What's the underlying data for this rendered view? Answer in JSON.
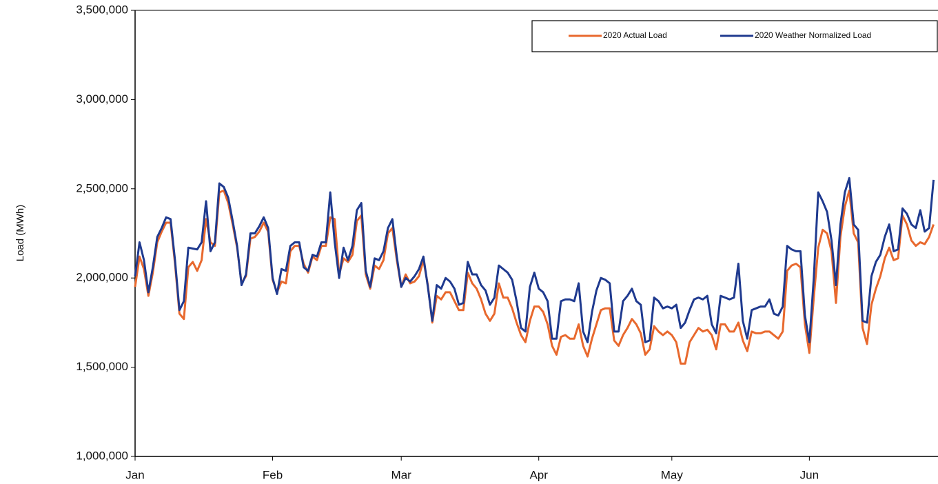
{
  "chart_data": {
    "type": "line",
    "y_label": "Load (MWh)",
    "x": [
      0,
      1,
      2,
      3,
      4,
      5,
      6,
      7,
      8,
      9,
      10,
      11,
      12,
      13,
      14,
      15,
      16,
      17,
      18,
      19,
      20,
      21,
      22,
      23,
      24,
      25,
      26,
      27,
      28,
      29,
      30,
      31,
      32,
      33,
      34,
      35,
      36,
      37,
      38,
      39,
      40,
      41,
      42,
      43,
      44,
      45,
      46,
      47,
      48,
      49,
      50,
      51,
      52,
      53,
      54,
      55,
      56,
      57,
      58,
      59,
      60,
      61,
      62,
      63,
      64,
      65,
      66,
      67,
      68,
      69,
      70,
      71,
      72,
      73,
      74,
      75,
      76,
      77,
      78,
      79,
      80,
      81,
      82,
      83,
      84,
      85,
      86,
      87,
      88,
      89,
      90,
      91,
      92,
      93,
      94,
      95,
      96,
      97,
      98,
      99,
      100,
      101,
      102,
      103,
      104,
      105,
      106,
      107,
      108,
      109,
      110,
      111,
      112,
      113,
      114,
      115,
      116,
      117,
      118,
      119,
      120,
      121,
      122,
      123,
      124,
      125,
      126,
      127,
      128,
      129,
      130,
      131,
      132,
      133,
      134,
      135,
      136,
      137,
      138,
      139,
      140,
      141,
      142,
      143,
      144,
      145,
      146,
      147,
      148,
      149,
      150,
      151,
      152,
      153,
      154,
      155,
      156,
      157,
      158,
      159,
      160,
      161,
      162,
      163,
      164,
      165,
      166,
      167,
      168,
      169,
      170,
      171,
      172,
      173,
      174,
      175,
      176,
      177,
      178,
      179,
      180
    ],
    "xlim": [
      0,
      181
    ],
    "xticks": [
      {
        "value": 0,
        "label": "Jan"
      },
      {
        "value": 31,
        "label": "Feb"
      },
      {
        "value": 60,
        "label": "Mar"
      },
      {
        "value": 91,
        "label": "Apr"
      },
      {
        "value": 121,
        "label": "May"
      },
      {
        "value": 152,
        "label": "Jun"
      }
    ],
    "ylim": [
      1000000,
      3500000
    ],
    "yticks": [
      {
        "value": 1000000,
        "label": "1,000,000"
      },
      {
        "value": 1500000,
        "label": "1,500,000"
      },
      {
        "value": 2000000,
        "label": "2,000,000"
      },
      {
        "value": 2500000,
        "label": "2,500,000"
      },
      {
        "value": 3000000,
        "label": "3,000,000"
      },
      {
        "value": 3500000,
        "label": "3,500,000"
      }
    ],
    "legend": "top-right",
    "series": [
      {
        "name": "2020 Actual Load",
        "color": "#e8692e",
        "values": [
          1950000,
          2120000,
          2050000,
          1900000,
          2030000,
          2200000,
          2260000,
          2310000,
          2310000,
          2080000,
          1800000,
          1770000,
          2060000,
          2090000,
          2040000,
          2100000,
          2330000,
          2200000,
          2180000,
          2480000,
          2490000,
          2420000,
          2300000,
          2170000,
          1970000,
          2010000,
          2220000,
          2230000,
          2260000,
          2310000,
          2260000,
          1990000,
          1920000,
          1980000,
          1970000,
          2150000,
          2180000,
          2180000,
          2080000,
          2030000,
          2120000,
          2100000,
          2180000,
          2180000,
          2340000,
          2330000,
          2020000,
          2110000,
          2090000,
          2130000,
          2320000,
          2350000,
          2020000,
          1940000,
          2070000,
          2050000,
          2100000,
          2250000,
          2280000,
          2100000,
          1950000,
          2020000,
          1970000,
          1980000,
          2010000,
          2100000,
          1960000,
          1750000,
          1900000,
          1880000,
          1920000,
          1920000,
          1870000,
          1820000,
          1820000,
          2030000,
          1970000,
          1940000,
          1880000,
          1800000,
          1760000,
          1800000,
          1970000,
          1890000,
          1890000,
          1830000,
          1750000,
          1680000,
          1640000,
          1760000,
          1840000,
          1840000,
          1810000,
          1740000,
          1620000,
          1570000,
          1670000,
          1680000,
          1660000,
          1660000,
          1740000,
          1620000,
          1560000,
          1660000,
          1740000,
          1820000,
          1830000,
          1830000,
          1650000,
          1620000,
          1680000,
          1720000,
          1770000,
          1740000,
          1690000,
          1570000,
          1600000,
          1730000,
          1700000,
          1680000,
          1700000,
          1680000,
          1640000,
          1520000,
          1520000,
          1640000,
          1680000,
          1720000,
          1700000,
          1710000,
          1680000,
          1600000,
          1740000,
          1740000,
          1700000,
          1700000,
          1750000,
          1650000,
          1590000,
          1700000,
          1690000,
          1690000,
          1700000,
          1700000,
          1680000,
          1660000,
          1700000,
          2040000,
          2070000,
          2080000,
          2060000,
          1740000,
          1580000,
          1890000,
          2170000,
          2270000,
          2250000,
          2150000,
          1860000,
          2230000,
          2400000,
          2490000,
          2250000,
          2200000,
          1720000,
          1630000,
          1850000,
          1940000,
          2010000,
          2110000,
          2170000,
          2100000,
          2110000,
          2350000,
          2300000,
          2210000,
          2180000,
          2200000,
          2190000,
          2230000,
          2300000
        ]
      },
      {
        "name": "2020 Weather Normalized Load",
        "color": "#1f3a8f",
        "values": [
          2010000,
          2200000,
          2100000,
          1920000,
          2060000,
          2230000,
          2280000,
          2340000,
          2330000,
          2100000,
          1820000,
          1870000,
          2170000,
          2165000,
          2160000,
          2200000,
          2430000,
          2150000,
          2200000,
          2530000,
          2510000,
          2450000,
          2320000,
          2180000,
          1960000,
          2020000,
          2250000,
          2250000,
          2290000,
          2340000,
          2280000,
          2000000,
          1910000,
          2050000,
          2040000,
          2180000,
          2200000,
          2200000,
          2060000,
          2040000,
          2130000,
          2120000,
          2200000,
          2200000,
          2480000,
          2200000,
          2000000,
          2170000,
          2100000,
          2180000,
          2380000,
          2420000,
          2040000,
          1950000,
          2110000,
          2100000,
          2150000,
          2280000,
          2330000,
          2120000,
          1950000,
          2000000,
          1980000,
          2010000,
          2050000,
          2120000,
          1950000,
          1760000,
          1960000,
          1940000,
          2000000,
          1980000,
          1940000,
          1850000,
          1860000,
          2090000,
          2020000,
          2020000,
          1960000,
          1930000,
          1850000,
          1890000,
          2070000,
          2050000,
          2030000,
          1990000,
          1870000,
          1720000,
          1700000,
          1950000,
          2030000,
          1940000,
          1920000,
          1870000,
          1660000,
          1660000,
          1870000,
          1880000,
          1880000,
          1870000,
          1970000,
          1700000,
          1640000,
          1810000,
          1930000,
          2000000,
          1990000,
          1970000,
          1700000,
          1700000,
          1870000,
          1900000,
          1940000,
          1870000,
          1850000,
          1640000,
          1650000,
          1890000,
          1870000,
          1830000,
          1840000,
          1830000,
          1850000,
          1720000,
          1750000,
          1820000,
          1880000,
          1890000,
          1880000,
          1900000,
          1740000,
          1690000,
          1900000,
          1890000,
          1880000,
          1890000,
          2080000,
          1760000,
          1660000,
          1820000,
          1830000,
          1840000,
          1840000,
          1880000,
          1800000,
          1790000,
          1840000,
          2180000,
          2160000,
          2150000,
          2150000,
          1790000,
          1640000,
          2000000,
          2480000,
          2430000,
          2370000,
          2210000,
          1960000,
          2300000,
          2480000,
          2560000,
          2300000,
          2270000,
          1760000,
          1750000,
          2010000,
          2090000,
          2130000,
          2230000,
          2300000,
          2150000,
          2160000,
          2390000,
          2360000,
          2300000,
          2280000,
          2380000,
          2260000,
          2280000,
          2550000
        ]
      }
    ]
  }
}
